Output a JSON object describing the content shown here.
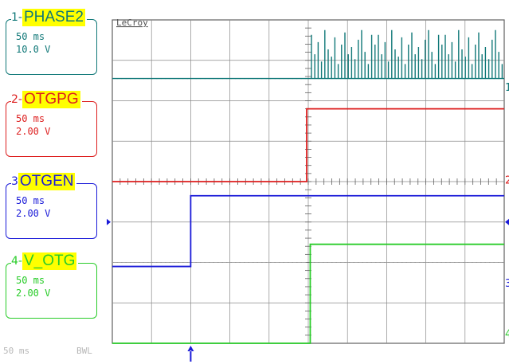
{
  "brand": "LeCroy",
  "channels": [
    {
      "num": "1",
      "name": "PHASE2",
      "timebase": "50 ms",
      "scale": "10.0 V",
      "marker": "1",
      "color": "#107878"
    },
    {
      "num": "2",
      "name": "OTGPG",
      "timebase": "50 ms",
      "scale": "2.00 V",
      "marker": "2",
      "color": "#dd1f1f"
    },
    {
      "num": "3",
      "name": "OTGEN",
      "timebase": "50 ms",
      "scale": "2.00 V",
      "marker": "3",
      "color": "#1a1ad8"
    },
    {
      "num": "4",
      "name": "V_OTG",
      "timebase": "50 ms",
      "scale": "2.00 V",
      "marker": "4",
      "color": "#29cc29"
    }
  ],
  "footer": {
    "timebase": "50 ms",
    "bwl": "BWL"
  },
  "colors": {
    "grid": "#606060",
    "dotted_grid": "#9a9a9a",
    "text": "#606060"
  },
  "chart_data": {
    "type": "line",
    "x_divisions": 10,
    "y_divisions": 8,
    "time_per_div": "50 ms",
    "x_range_div": [
      0,
      10
    ],
    "y_range_div": [
      0,
      8
    ],
    "series": [
      {
        "name": "PHASE2",
        "baseline_div": 6.55,
        "edge_div": 5.0,
        "type": "pulses_after_edge",
        "pulse_height_div": 1.2
      },
      {
        "name": "OTGPG",
        "points_div": [
          [
            0,
            4.0
          ],
          [
            4.96,
            4.0
          ],
          [
            4.96,
            5.8
          ],
          [
            10,
            5.8
          ]
        ]
      },
      {
        "name": "OTGEN",
        "points_div": [
          [
            0,
            1.9
          ],
          [
            2.0,
            1.9
          ],
          [
            2.0,
            3.65
          ],
          [
            10,
            3.65
          ]
        ]
      },
      {
        "name": "V_OTG",
        "points_div": [
          [
            0,
            0.0
          ],
          [
            5.05,
            0.0
          ],
          [
            5.05,
            2.45
          ],
          [
            10,
            2.45
          ]
        ]
      }
    ],
    "trigger_arrow_x_div": 2.0,
    "grid": true
  }
}
